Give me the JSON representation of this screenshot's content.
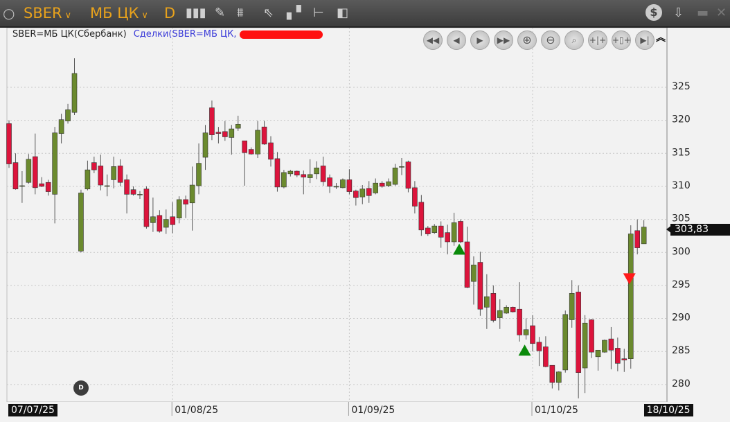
{
  "toolbar": {
    "ticker": "SBER",
    "board": "МБ ЦК",
    "interval": "D",
    "icons": [
      "circle-icon",
      "candles-icon",
      "pencil-icon",
      "indicator-icon",
      "cursor-icon",
      "orderbook-icon",
      "levels-icon",
      "trades-icon",
      "dollar-icon",
      "download-icon",
      "minimize-icon",
      "close-icon"
    ]
  },
  "header": {
    "instrument": "SBER=МБ ЦК(Сбербанк)",
    "deals": "Сделки(SBER=МБ ЦК,"
  },
  "nav_buttons": [
    "rewind-fast",
    "step-back",
    "step-forward",
    "forward-fast",
    "zoom-in",
    "zoom-out",
    "zoom-fit",
    "compress",
    "expand",
    "go-last"
  ],
  "colors": {
    "up": "#6b8a2e",
    "down": "#dc143c",
    "buy_marker": "#0a8a0a",
    "sell_marker": "#ff1a1a"
  },
  "badge": "D",
  "chart_data": {
    "type": "candlestick",
    "ylim": [
      277,
      331
    ],
    "yticks": [
      280,
      285,
      290,
      295,
      300,
      305,
      310,
      315,
      320,
      325
    ],
    "grid": true,
    "last_price": "303,83",
    "xticks": [
      {
        "index": 1,
        "label": "07/07/25",
        "boxed": true
      },
      {
        "index": 26,
        "label": "01/08/25",
        "boxed": false
      },
      {
        "index": 53,
        "label": "01/09/25",
        "boxed": false
      },
      {
        "index": 81,
        "label": "01/10/25",
        "boxed": false
      },
      {
        "index": 98,
        "label": "18/10/25",
        "boxed": true
      }
    ],
    "ohlc_fields": [
      "open",
      "high",
      "low",
      "close"
    ],
    "candles": [
      [
        319.5,
        320,
        312.8,
        313.4
      ],
      [
        313.6,
        315,
        309.5,
        309.6
      ],
      [
        310.1,
        312.3,
        307.5,
        310.1
      ],
      [
        310.6,
        314.9,
        310.4,
        314.1
      ],
      [
        314.5,
        318,
        308.8,
        309.8
      ],
      [
        310.4,
        311.4,
        309.9,
        310.0
      ],
      [
        310.6,
        311,
        308.6,
        309.2
      ],
      [
        308.8,
        319,
        304.4,
        318.1
      ],
      [
        318,
        321,
        316.5,
        320.1
      ],
      [
        319.9,
        322.5,
        319.5,
        321.6
      ],
      [
        321.2,
        329.4,
        320.8,
        327.1
      ],
      [
        300.2,
        309.5,
        300,
        309
      ],
      [
        309.6,
        313.9,
        309.4,
        312.5
      ],
      [
        313.6,
        314.5,
        312,
        312.5
      ],
      [
        313.1,
        314.8,
        309.4,
        310.2
      ],
      [
        310.1,
        311.8,
        308.5,
        310.1
      ],
      [
        311,
        314.5,
        309.7,
        313
      ],
      [
        313.1,
        314.1,
        310,
        310.6
      ],
      [
        311,
        311.8,
        305.9,
        308.8
      ],
      [
        309.5,
        310,
        308.6,
        308.8
      ],
      [
        308.8,
        309.3,
        308.1,
        308.8
      ],
      [
        309.6,
        310,
        303.6,
        303.9
      ],
      [
        304.5,
        308.3,
        303.1,
        305.4
      ],
      [
        305.6,
        306.4,
        303,
        303.2
      ],
      [
        303.8,
        306.5,
        302.8,
        305
      ],
      [
        305.4,
        307.6,
        302.9,
        304.2
      ],
      [
        305.2,
        308.5,
        304.4,
        308
      ],
      [
        308,
        308.6,
        305.2,
        307.3
      ],
      [
        307.5,
        313,
        303.3,
        310.2
      ],
      [
        310.1,
        316.5,
        308.8,
        313.5
      ],
      [
        314.4,
        319.3,
        312.5,
        318.1
      ],
      [
        321.9,
        323,
        317,
        317.8
      ],
      [
        318.2,
        319,
        316.5,
        318
      ],
      [
        318.3,
        319.9,
        316.9,
        317.5
      ],
      [
        317.4,
        319.3,
        314.8,
        318.7
      ],
      [
        318.8,
        320.7,
        318.4,
        319.4
      ],
      [
        316.9,
        316.9,
        310.1,
        315.1
      ],
      [
        315.6,
        315.9,
        314.8,
        314.9
      ],
      [
        314.9,
        319.9,
        314.3,
        318.5
      ],
      [
        319,
        319.9,
        316.3,
        316.4
      ],
      [
        316.6,
        317.6,
        313,
        314.1
      ],
      [
        314.2,
        315.2,
        309.2,
        309.9
      ],
      [
        309.9,
        312.5,
        309.7,
        312.1
      ],
      [
        311.9,
        312.5,
        311.5,
        312.3
      ],
      [
        312.3,
        312.4,
        311.4,
        311.7
      ],
      [
        311.8,
        312.4,
        308.8,
        311.4
      ],
      [
        311.3,
        314.1,
        310.5,
        311.8
      ],
      [
        311.9,
        313.8,
        311.1,
        312.8
      ],
      [
        313.1,
        314.5,
        310.1,
        310.7
      ],
      [
        311.3,
        311.8,
        309,
        310
      ],
      [
        310,
        310.5,
        309.6,
        310
      ],
      [
        309.8,
        311.2,
        309.7,
        311
      ],
      [
        311,
        312.6,
        308.8,
        309.2
      ],
      [
        309.3,
        309.5,
        307.1,
        308.3
      ],
      [
        308.4,
        310.2,
        307.3,
        309.6
      ],
      [
        309.7,
        310.8,
        307.5,
        308.6
      ],
      [
        309,
        311.2,
        308.8,
        310.5
      ],
      [
        310.5,
        310.8,
        309.8,
        310
      ],
      [
        310.1,
        311.2,
        309.9,
        310.7
      ],
      [
        310.3,
        313.4,
        310.1,
        312.8
      ],
      [
        313,
        314.3,
        311.7,
        313
      ],
      [
        313.7,
        313.9,
        309.1,
        309.7
      ],
      [
        309.8,
        310.8,
        305.9,
        307
      ],
      [
        307.6,
        308.7,
        302.5,
        303.4
      ],
      [
        303.7,
        304,
        302.5,
        302.8
      ],
      [
        303,
        304.3,
        302.8,
        304
      ],
      [
        304,
        304.7,
        300.7,
        302.3
      ],
      [
        303,
        304.2,
        299.7,
        301.6
      ],
      [
        301.6,
        306,
        301,
        304.5
      ],
      [
        304.7,
        305,
        301.4,
        301.6
      ],
      [
        301.6,
        303.9,
        294.6,
        294.7
      ],
      [
        295.6,
        299.4,
        292.1,
        298.1
      ],
      [
        298.5,
        300.1,
        290.4,
        291.4
      ],
      [
        291.7,
        296.7,
        288.4,
        293.3
      ],
      [
        293.8,
        295,
        289.4,
        289.7
      ],
      [
        290.1,
        292.9,
        288.4,
        291.2
      ],
      [
        290.8,
        292,
        290.7,
        291.7
      ],
      [
        291.7,
        291.8,
        290.9,
        291
      ],
      [
        291.4,
        295.5,
        286.5,
        287.5
      ],
      [
        287.5,
        290,
        286.8,
        288.3
      ],
      [
        288.9,
        290.5,
        285,
        286.2
      ],
      [
        286.4,
        287.2,
        282.8,
        285.1
      ],
      [
        285.7,
        287.3,
        282.6,
        282.7
      ],
      [
        282.9,
        282.9,
        279.4,
        280.3
      ],
      [
        280.3,
        282,
        279.1,
        281.9
      ],
      [
        282.2,
        291.2,
        281.8,
        290.6
      ],
      [
        289.8,
        295.8,
        288.6,
        293.8
      ],
      [
        294,
        295,
        277.9,
        281.8
      ],
      [
        282.5,
        290.5,
        278.7,
        289.3
      ],
      [
        289.8,
        289.9,
        284,
        284.9
      ],
      [
        284.2,
        285.2,
        282.1,
        285.2
      ],
      [
        284.9,
        286.8,
        284.8,
        286.7
      ],
      [
        286.9,
        288.7,
        282.3,
        285.2
      ],
      [
        285.5,
        287.1,
        282,
        283.2
      ],
      [
        283.9,
        285.4,
        281.9,
        283.7
      ],
      [
        283.9,
        304.1,
        282.4,
        302.8
      ],
      [
        303.3,
        305,
        299.7,
        300.7
      ],
      [
        301.3,
        304.9,
        301.3,
        303.83
      ]
    ],
    "trade_markers": [
      {
        "index": 70,
        "price": 300.5,
        "side": "buy"
      },
      {
        "index": 80,
        "price": 285.2,
        "side": "buy"
      },
      {
        "index": 96,
        "price": 296,
        "side": "sell"
      }
    ]
  }
}
